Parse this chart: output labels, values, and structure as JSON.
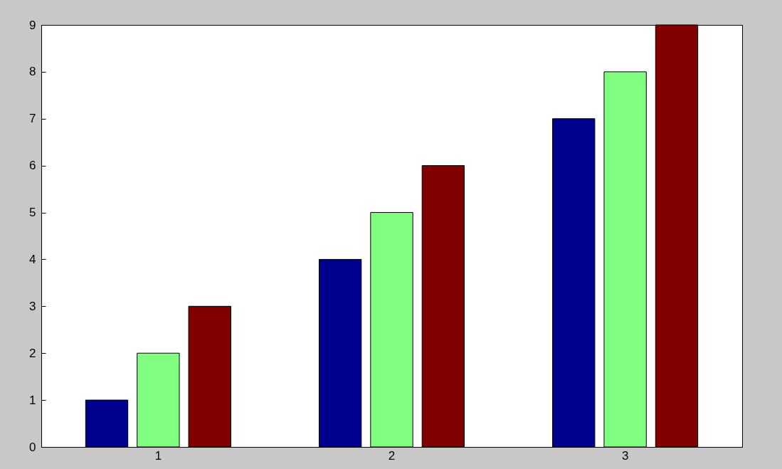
{
  "chart_data": {
    "type": "bar",
    "categories": [
      "1",
      "2",
      "3"
    ],
    "series": [
      {
        "color": "#00008f",
        "values": [
          1,
          4,
          7
        ]
      },
      {
        "color": "#80ff80",
        "values": [
          2,
          5,
          8
        ]
      },
      {
        "color": "#800000",
        "values": [
          3,
          6,
          9
        ]
      }
    ],
    "ylim": [
      0,
      9
    ],
    "yticks": [
      0,
      1,
      2,
      3,
      4,
      5,
      6,
      7,
      8,
      9
    ],
    "grid": false,
    "legend": false
  }
}
